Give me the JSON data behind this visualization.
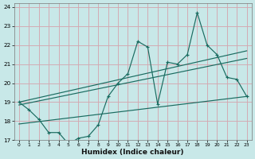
{
  "xlabel": "Humidex (Indice chaleur)",
  "bg_color": "#c8e8e8",
  "grid_color": "#d4a8b0",
  "line_color": "#1a6b60",
  "xlim": [
    -0.5,
    23.5
  ],
  "ylim": [
    17,
    24.2
  ],
  "yticks": [
    17,
    18,
    19,
    20,
    21,
    22,
    23,
    24
  ],
  "xticks": [
    0,
    1,
    2,
    3,
    4,
    5,
    6,
    7,
    8,
    9,
    10,
    11,
    12,
    13,
    14,
    15,
    16,
    17,
    18,
    19,
    20,
    21,
    22,
    23
  ],
  "main_x": [
    0,
    1,
    2,
    3,
    4,
    5,
    6,
    7,
    8,
    9,
    10,
    11,
    12,
    13,
    14,
    15,
    16,
    17,
    18,
    19,
    20,
    21,
    22,
    23
  ],
  "main_y": [
    19.0,
    18.6,
    18.1,
    17.4,
    17.4,
    16.8,
    17.1,
    17.2,
    17.8,
    19.3,
    20.0,
    20.5,
    22.2,
    21.9,
    18.9,
    21.1,
    21.0,
    21.5,
    23.7,
    22.0,
    21.5,
    20.3,
    20.2,
    19.3
  ],
  "upper_line": [
    19.0,
    21.7
  ],
  "mid_upper_line": [
    18.85,
    21.3
  ],
  "lower_line": [
    17.85,
    19.3
  ],
  "line_x_start": 0,
  "line_x_end": 23
}
